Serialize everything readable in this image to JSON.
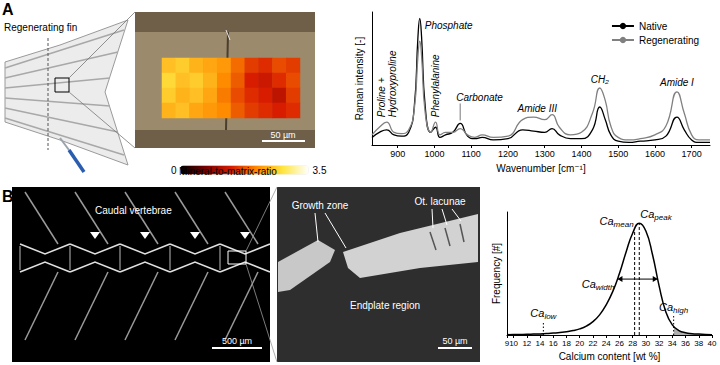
{
  "panels": [
    "A",
    "B"
  ],
  "fin_schematic": {
    "title": "Regenerating fin"
  },
  "micrograph": {
    "scale_bar": "50 µm",
    "colorbar": {
      "title": "Mineral-to-matrix-ratio",
      "range": [
        0,
        3.5
      ],
      "ticks": [
        0,
        3.5
      ]
    },
    "cells": [
      [
        2.5,
        2.6,
        2.4,
        2.3,
        2.2,
        1.9,
        1.6,
        1.5,
        1.7,
        1.6
      ],
      [
        2.7,
        2.5,
        2.6,
        2.4,
        2.1,
        1.8,
        1.4,
        1.3,
        1.5,
        1.7
      ],
      [
        2.6,
        2.4,
        2.5,
        2.3,
        2.0,
        1.7,
        1.5,
        1.4,
        1.2,
        1.6
      ],
      [
        2.4,
        2.5,
        2.3,
        2.2,
        2.1,
        1.8,
        1.6,
        1.5,
        1.4,
        1.5
      ]
    ]
  },
  "ct_scan": {
    "title": "Caudal vertebrae",
    "scale_bar": "500 µm"
  },
  "ct_detail": {
    "labels": [
      "Growth zone",
      "Ot. lacunae",
      "Endplate region"
    ],
    "scale_bar": "50 µm"
  },
  "chart_data": [
    {
      "type": "line",
      "x_label": "Wavenumber [cm⁻¹]",
      "y_label": "Raman intensity [-]",
      "x": [
        830,
        850,
        870,
        890,
        910,
        930,
        945,
        955,
        960,
        965,
        975,
        990,
        1003,
        1015,
        1030,
        1050,
        1070,
        1090,
        1110,
        1130,
        1160,
        1200,
        1240,
        1270,
        1300,
        1320,
        1340,
        1370,
        1400,
        1430,
        1450,
        1465,
        1480,
        1500,
        1530,
        1560,
        1600,
        1630,
        1660,
        1680,
        1700,
        1720,
        1750
      ],
      "series": [
        {
          "name": "Native",
          "color": "#000000",
          "values": [
            0.06,
            0.1,
            0.12,
            0.08,
            0.07,
            0.1,
            0.3,
            0.85,
            1.0,
            0.85,
            0.3,
            0.1,
            0.14,
            0.06,
            0.08,
            0.1,
            0.17,
            0.07,
            0.05,
            0.06,
            0.04,
            0.05,
            0.12,
            0.11,
            0.1,
            0.13,
            0.08,
            0.05,
            0.05,
            0.12,
            0.3,
            0.2,
            0.08,
            0.03,
            0.02,
            0.03,
            0.04,
            0.07,
            0.22,
            0.12,
            0.04,
            0.02,
            0.02
          ]
        },
        {
          "name": "Regenerating",
          "color": "#808080",
          "values": [
            0.08,
            0.14,
            0.18,
            0.1,
            0.09,
            0.12,
            0.28,
            0.7,
            0.82,
            0.7,
            0.25,
            0.1,
            0.18,
            0.08,
            0.1,
            0.1,
            0.13,
            0.08,
            0.06,
            0.08,
            0.06,
            0.07,
            0.2,
            0.22,
            0.2,
            0.24,
            0.14,
            0.08,
            0.1,
            0.25,
            0.45,
            0.35,
            0.15,
            0.06,
            0.04,
            0.05,
            0.08,
            0.15,
            0.42,
            0.25,
            0.08,
            0.04,
            0.04
          ]
        }
      ],
      "xlim": [
        830,
        1750
      ],
      "xticks": [
        900,
        1000,
        1100,
        1200,
        1300,
        1400,
        1500,
        1600,
        1700
      ],
      "ylim": [
        0,
        1.05
      ],
      "yticks": [],
      "tick_labels": "x",
      "grid": false,
      "legend": "top-right",
      "annotations": [
        {
          "text": "Proline + Hydroxyproline",
          "x": 870
        },
        {
          "text": "Phosphate",
          "x": 960
        },
        {
          "text": "Phenylalanine",
          "x": 1003
        },
        {
          "text": "Carbonate",
          "x": 1070
        },
        {
          "text": "Amide III",
          "x": 1280
        },
        {
          "text": "CH₂",
          "x": 1450
        },
        {
          "text": "Amide I",
          "x": 1660
        }
      ]
    },
    {
      "type": "line",
      "x_label": "Calcium content [wt %]",
      "y_label": "Frequency [#]",
      "x": [
        9,
        10,
        11,
        12,
        13,
        14,
        15,
        16,
        17,
        18,
        19,
        20,
        21,
        22,
        23,
        24,
        25,
        26,
        27,
        28,
        29,
        30,
        31,
        32,
        33,
        34,
        35,
        36,
        37,
        38,
        39,
        40
      ],
      "values": [
        0.3,
        0.4,
        0.5,
        0.6,
        0.8,
        1,
        1.3,
        1.7,
        2.3,
        3,
        4,
        5.5,
        8,
        12,
        18,
        27,
        39,
        55,
        74,
        91,
        100,
        93,
        72,
        44,
        21,
        9,
        4,
        2,
        1.2,
        0.8,
        0.5,
        0.3
      ],
      "color": "#000000",
      "xlim": [
        9,
        40
      ],
      "xticks": [
        9,
        10,
        12,
        14,
        16,
        18,
        20,
        22,
        24,
        26,
        28,
        30,
        32,
        34,
        36,
        38,
        40
      ],
      "ylim": [
        0,
        110
      ],
      "yticks": [],
      "tick_labels": "x",
      "grid": false,
      "markers": [
        {
          "text": "Ca",
          "sub": "low",
          "x": 14.5
        },
        {
          "text": "Ca",
          "sub": "mean",
          "x": 28.3
        },
        {
          "text": "Ca",
          "sub": "peak",
          "x": 29
        },
        {
          "text": "Ca",
          "sub": "high",
          "x": 34.2
        }
      ],
      "width_marker": {
        "text": "Ca",
        "sub": "width",
        "x": [
          25.7,
          31.8
        ]
      }
    }
  ]
}
